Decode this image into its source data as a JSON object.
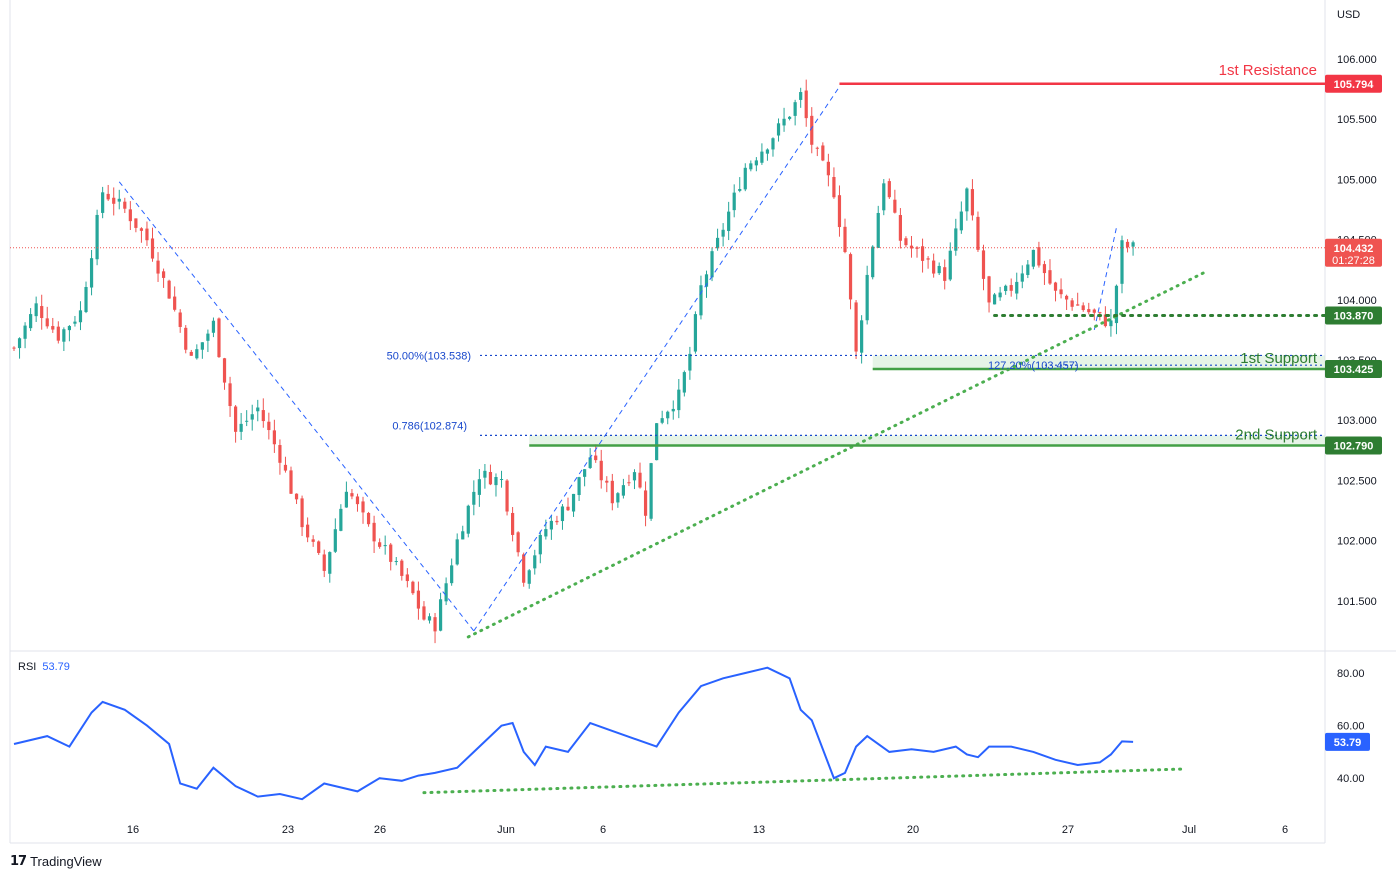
{
  "currency": "USD",
  "branding": {
    "mark": "17",
    "name": "TradingView"
  },
  "rsi": {
    "label": "RSI",
    "value": "53.79"
  },
  "price_tag": {
    "price": "104.432",
    "countdown": "01:27:28"
  },
  "colors": {
    "up": "#26a69a",
    "down": "#ef5350",
    "resistance": "#f23645",
    "support": "#43a047",
    "fib": "#2962ff",
    "rsi": "#2962ff",
    "trend": "#4caf50"
  },
  "chart_data": [
    {
      "type": "candlestick",
      "x_ticks": [
        "16",
        "23",
        "26",
        "Jun",
        "6",
        "13",
        "20",
        "27",
        "Jul",
        "6"
      ],
      "y_ticks": [
        "106.000",
        "105.500",
        "105.000",
        "104.500",
        "104.000",
        "103.500",
        "103.000",
        "102.500",
        "102.000",
        "101.500"
      ],
      "ylim": [
        101.15,
        106.25
      ],
      "levels": [
        {
          "name": "1st Resistance",
          "value": 105.794,
          "tag": "105.794",
          "kind": "resistance"
        },
        {
          "name": "",
          "value": 103.87,
          "tag": "103.870",
          "kind": "dotted"
        },
        {
          "name": "1st Support",
          "value": 103.425,
          "tag": "103.425",
          "kind": "support"
        },
        {
          "name": "2nd Support",
          "value": 102.79,
          "tag": "102.790",
          "kind": "support"
        }
      ],
      "annotations": [
        {
          "text": "50.00%(103.538)",
          "value": 103.538
        },
        {
          "text": "0.786(102.874)",
          "value": 102.874
        },
        {
          "text": "127.20%(103.457)",
          "value": 103.457
        }
      ],
      "last_price": 104.432,
      "anchors": [
        {
          "i": 0,
          "v": 103.6
        },
        {
          "i": 4,
          "v": 103.95
        },
        {
          "i": 8,
          "v": 103.7
        },
        {
          "i": 12,
          "v": 103.9
        },
        {
          "i": 16,
          "v": 104.9
        },
        {
          "i": 20,
          "v": 104.75
        },
        {
          "i": 24,
          "v": 104.5
        },
        {
          "i": 28,
          "v": 104.05
        },
        {
          "i": 32,
          "v": 103.5
        },
        {
          "i": 36,
          "v": 103.8
        },
        {
          "i": 40,
          "v": 102.9
        },
        {
          "i": 44,
          "v": 103.1
        },
        {
          "i": 48,
          "v": 102.7
        },
        {
          "i": 52,
          "v": 102.15
        },
        {
          "i": 56,
          "v": 101.75
        },
        {
          "i": 60,
          "v": 102.45
        },
        {
          "i": 64,
          "v": 102.1
        },
        {
          "i": 68,
          "v": 101.85
        },
        {
          "i": 72,
          "v": 101.55
        },
        {
          "i": 74,
          "v": 101.35
        },
        {
          "i": 76,
          "v": 101.3
        },
        {
          "i": 80,
          "v": 102.0
        },
        {
          "i": 84,
          "v": 102.55
        },
        {
          "i": 88,
          "v": 102.5
        },
        {
          "i": 92,
          "v": 101.7
        },
        {
          "i": 96,
          "v": 102.1
        },
        {
          "i": 100,
          "v": 102.3
        },
        {
          "i": 104,
          "v": 102.7
        },
        {
          "i": 108,
          "v": 102.35
        },
        {
          "i": 112,
          "v": 102.6
        },
        {
          "i": 114,
          "v": 102.25
        },
        {
          "i": 116,
          "v": 103.0
        },
        {
          "i": 120,
          "v": 103.2
        },
        {
          "i": 122,
          "v": 103.55
        },
        {
          "i": 124,
          "v": 104.1
        },
        {
          "i": 128,
          "v": 104.6
        },
        {
          "i": 132,
          "v": 105.1
        },
        {
          "i": 136,
          "v": 105.3
        },
        {
          "i": 140,
          "v": 105.55
        },
        {
          "i": 142,
          "v": 105.7
        },
        {
          "i": 144,
          "v": 105.3
        },
        {
          "i": 148,
          "v": 104.9
        },
        {
          "i": 150,
          "v": 104.4
        },
        {
          "i": 152,
          "v": 103.55
        },
        {
          "i": 154,
          "v": 104.2
        },
        {
          "i": 157,
          "v": 105.0
        },
        {
          "i": 160,
          "v": 104.5
        },
        {
          "i": 164,
          "v": 104.35
        },
        {
          "i": 168,
          "v": 104.2
        },
        {
          "i": 172,
          "v": 104.9
        },
        {
          "i": 174,
          "v": 104.4
        },
        {
          "i": 176,
          "v": 103.95
        },
        {
          "i": 180,
          "v": 104.1
        },
        {
          "i": 184,
          "v": 104.4
        },
        {
          "i": 188,
          "v": 104.05
        },
        {
          "i": 192,
          "v": 103.95
        },
        {
          "i": 196,
          "v": 103.85
        },
        {
          "i": 198,
          "v": 103.8
        },
        {
          "i": 200,
          "v": 104.45
        },
        {
          "i": 202,
          "v": 104.432
        }
      ],
      "candle_count": 203
    },
    {
      "type": "line",
      "name": "RSI",
      "y_ticks": [
        "80.00",
        "60.00",
        "40.00"
      ],
      "ylim": [
        29,
        84
      ],
      "x": [
        0,
        6,
        10,
        14,
        16,
        20,
        24,
        28,
        30,
        33,
        36,
        40,
        44,
        48,
        52,
        56,
        58,
        62,
        66,
        70,
        73,
        76,
        80,
        84,
        88,
        90,
        92,
        94,
        96,
        100,
        104,
        108,
        112,
        116,
        120,
        124,
        128,
        132,
        136,
        140,
        142,
        144,
        148,
        150,
        152,
        154,
        158,
        162,
        166,
        170,
        172,
        174,
        176,
        180,
        184,
        188,
        192,
        196,
        198,
        200,
        202
      ],
      "values": [
        53,
        56,
        52,
        65,
        69,
        66,
        60,
        53,
        38,
        36,
        44,
        37,
        33,
        34,
        32,
        38,
        37,
        35,
        40,
        39,
        41,
        42,
        44,
        52,
        60,
        61,
        50,
        45,
        52,
        50,
        61,
        58,
        55,
        52,
        65,
        75,
        78,
        80,
        82,
        78,
        66,
        62,
        40,
        42,
        52,
        56,
        50,
        51,
        50,
        52,
        49,
        48,
        52,
        52,
        50,
        47,
        45,
        46,
        49,
        54,
        53.79
      ]
    }
  ]
}
